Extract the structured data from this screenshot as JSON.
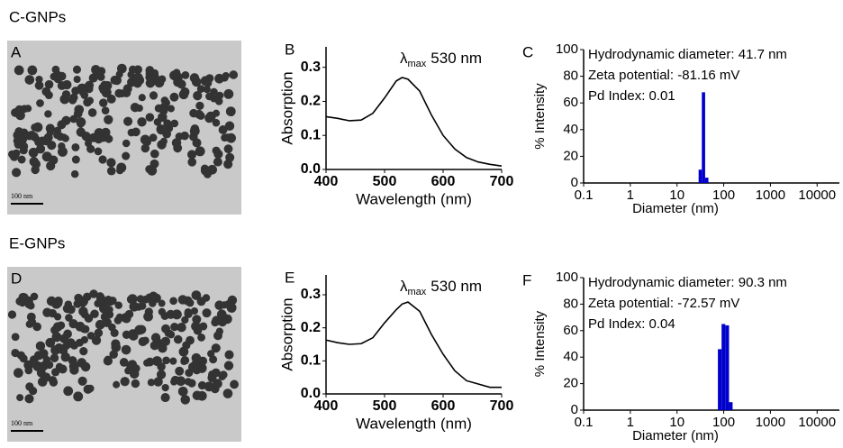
{
  "groups": [
    {
      "label": "C-GNPs",
      "image": {
        "panel": "A",
        "scale_bar": "100 nm"
      }
    },
    {
      "label": "E-GNPs",
      "image": {
        "panel": "D",
        "scale_bar": "100 nm"
      }
    }
  ],
  "chart_data": [
    {
      "type": "line",
      "panel": "B",
      "x_label": "Wavelength (nm)",
      "y_label": "Absorption",
      "annotation": {
        "symbol": "λ",
        "subscript": "max",
        "text": "530 nm"
      },
      "x": [
        400,
        420,
        440,
        460,
        480,
        500,
        520,
        530,
        540,
        560,
        580,
        600,
        620,
        640,
        660,
        680,
        700
      ],
      "values": [
        0.155,
        0.15,
        0.143,
        0.145,
        0.165,
        0.21,
        0.26,
        0.27,
        0.265,
        0.23,
        0.16,
        0.1,
        0.06,
        0.035,
        0.022,
        0.015,
        0.01
      ],
      "color": "#000000",
      "xlim": [
        400,
        700
      ],
      "ylim": [
        0,
        0.36
      ],
      "xticks": [
        400,
        500,
        600,
        700
      ],
      "yticks": [
        {
          "value": 0,
          "label": "0.0"
        },
        0.1,
        0.2,
        0.3
      ]
    },
    {
      "type": "histogram",
      "panel": "C",
      "x_label": "Diameter (nm)",
      "y_label": "% Intensity",
      "annotations": [
        "Hydrodynamic diameter: 41.7 nm",
        "Zeta potential: -81.16 mV",
        "Pd Index: 0.01"
      ],
      "bins": [
        29,
        34,
        40,
        47
      ],
      "values": [
        10,
        68,
        4
      ],
      "color": "#0000cc",
      "log_x": true,
      "xlim": [
        0.1,
        30000
      ],
      "ylim": [
        0,
        100
      ],
      "xticks": [
        0.1,
        1,
        10,
        100,
        1000,
        10000
      ],
      "yticks": [
        0,
        20,
        40,
        60,
        80,
        100
      ]
    },
    {
      "type": "line",
      "panel": "E",
      "x_label": "Wavelength (nm)",
      "y_label": "Absorption",
      "annotation": {
        "symbol": "λ",
        "subscript": "max",
        "text": "530 nm"
      },
      "x": [
        400,
        420,
        440,
        460,
        480,
        500,
        520,
        530,
        540,
        560,
        580,
        600,
        620,
        640,
        660,
        680,
        700
      ],
      "values": [
        0.163,
        0.155,
        0.15,
        0.152,
        0.17,
        0.215,
        0.255,
        0.272,
        0.278,
        0.25,
        0.18,
        0.12,
        0.07,
        0.04,
        0.03,
        0.02,
        0.02
      ],
      "color": "#000000",
      "xlim": [
        400,
        700
      ],
      "ylim": [
        0,
        0.36
      ],
      "xticks": [
        400,
        500,
        600,
        700
      ],
      "yticks": [
        {
          "value": 0,
          "label": "0.0"
        },
        0.1,
        0.2,
        0.3
      ]
    },
    {
      "type": "histogram",
      "panel": "F",
      "x_label": "Diameter (nm)",
      "y_label": "% Intensity",
      "annotations": [
        "Hydrodynamic diameter: 90.3 nm",
        "Zeta potential: -72.57 mV",
        "Pd Index: 0.04"
      ],
      "bins": [
        75,
        90,
        108,
        130,
        155
      ],
      "values": [
        46,
        65,
        64,
        6
      ],
      "color": "#0000cc",
      "log_x": true,
      "xlim": [
        0.1,
        30000
      ],
      "ylim": [
        0,
        100
      ],
      "xticks": [
        0.1,
        1,
        10,
        100,
        1000,
        10000
      ],
      "yticks": [
        0,
        20,
        40,
        60,
        80,
        100
      ]
    }
  ]
}
